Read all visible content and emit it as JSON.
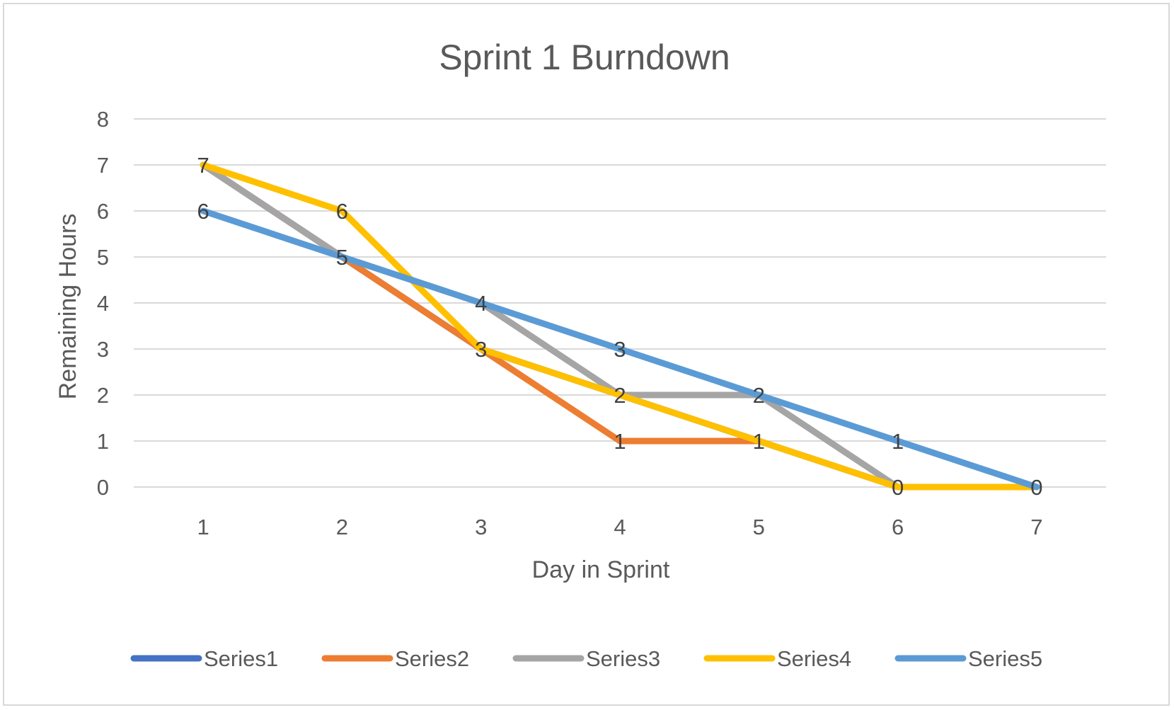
{
  "chart_data": {
    "type": "line",
    "title": "Sprint 1 Burndown",
    "xlabel": "Day in Sprint",
    "ylabel": "Remaining Hours",
    "categories": [
      "1",
      "2",
      "3",
      "4",
      "5",
      "6",
      "7"
    ],
    "ylim": [
      0,
      8
    ],
    "yticks": [
      0,
      1,
      2,
      3,
      4,
      5,
      6,
      7,
      8
    ],
    "grid": true,
    "legend_position": "bottom",
    "series": [
      {
        "name": "Series1",
        "color": "#4472C4",
        "values": [
          7,
          5,
          3,
          2,
          1,
          0,
          0
        ]
      },
      {
        "name": "Series2",
        "color": "#ED7D31",
        "values": [
          7,
          5,
          3,
          1,
          1,
          0,
          0
        ]
      },
      {
        "name": "Series3",
        "color": "#A5A5A5",
        "values": [
          7,
          5,
          4,
          2,
          2,
          0,
          0
        ]
      },
      {
        "name": "Series4",
        "color": "#FFC000",
        "values": [
          7,
          6,
          3,
          2,
          1,
          0,
          0
        ]
      },
      {
        "name": "Series5",
        "color": "#5B9BD5",
        "values": [
          6,
          5,
          4,
          3,
          2,
          1,
          0
        ]
      }
    ],
    "data_labels": [
      "7",
      "6",
      "6",
      "5",
      "4",
      "3",
      "3",
      "2",
      "1",
      "2",
      "1",
      "1",
      "0",
      "0"
    ]
  }
}
